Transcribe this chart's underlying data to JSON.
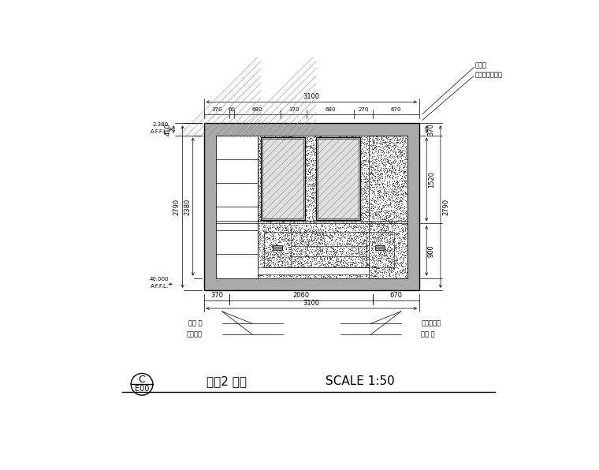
{
  "title": "睡房2 立面",
  "scale": "SCALE 1:50",
  "drawing_id": "C",
  "drawing_num": "E00",
  "bg_color": "#ffffff",
  "line_color": "#000000",
  "wall_color": "#aaaaaa",
  "dim_top": "3100",
  "dim_top_parts": [
    "370",
    "60",
    "680",
    "370",
    "680",
    "270",
    "670"
  ],
  "dim_bottom": "3100",
  "dim_bottom_parts": [
    "370",
    "2060",
    "670"
  ],
  "dim_left_total": "2790",
  "dim_left_inner": "2380",
  "dim_left_upper_label1": "2.380",
  "dim_left_upper_label2": "A.F.F.L.",
  "dim_left_lower_label1": "40.000",
  "dim_left_lower_label2": "A.F.F.L.",
  "dim_wall_top_left": "410",
  "dim_right_total": "2790",
  "dim_right_upper": "370",
  "dim_right_mid": "1520",
  "dim_right_lower": "900",
  "label_top_right_1": "自生層",
  "label_top_right_2": "光則石膏板接頭",
  "label_bottom_left_1": "成品 寬",
  "label_bottom_left_2": "成品椅子",
  "label_bottom_right_1": "乳膠漆飾面",
  "label_bottom_right_2": "成品 床"
}
